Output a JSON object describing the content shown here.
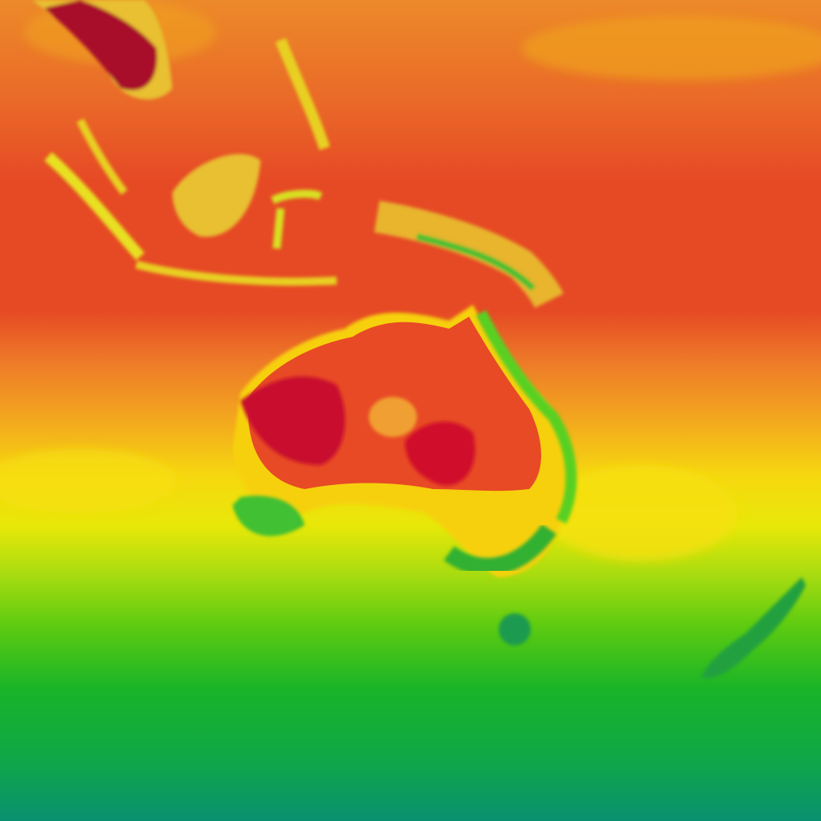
{
  "map": {
    "type": "temperature-heatmap-tile",
    "palette": {
      "hottest": "#c8102e",
      "hot": "#e84a25",
      "warm": "#ee7a28",
      "mild": "#f0a020",
      "yellow": "#f5e800",
      "yellow_green": "#b8e010",
      "green": "#50cc10",
      "deep_green": "#10b030",
      "teal": "#0a9070"
    }
  }
}
